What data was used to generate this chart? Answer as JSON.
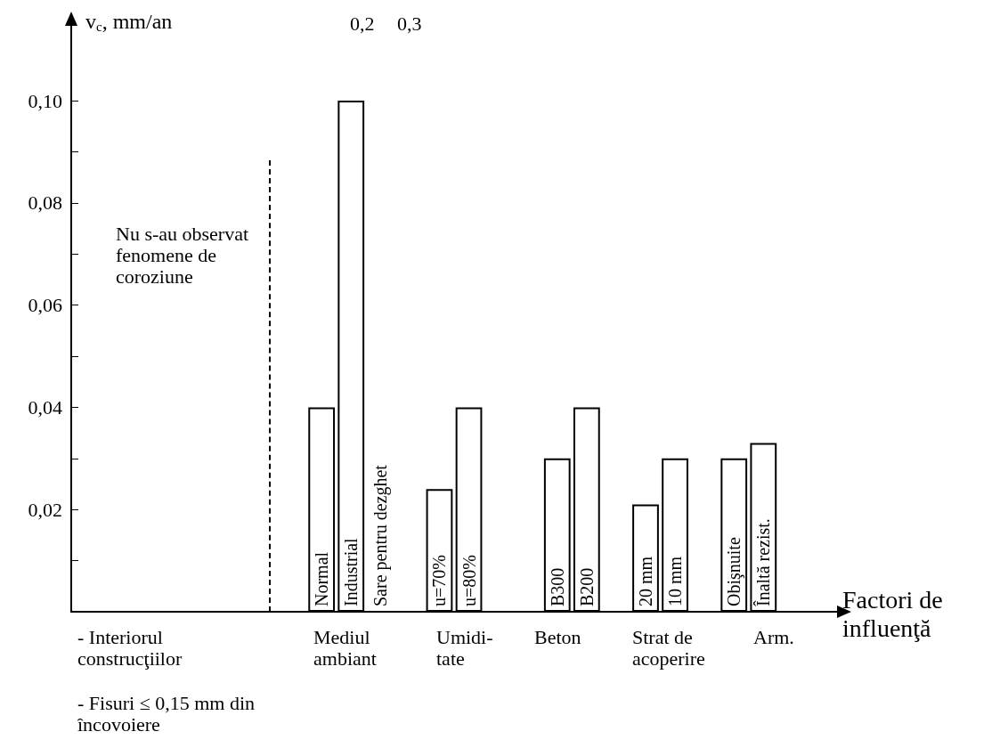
{
  "chart_data": {
    "type": "bar",
    "ylabel": "v$_{c}$, mm/an",
    "xlabel": "Factori de influenţă",
    "categories": [
      null,
      null,
      null,
      null,
      null,
      null,
      null,
      null,
      "Normal",
      "Industrial",
      "Sare pentru dezghet",
      null,
      "u=70%",
      "u=80%",
      null,
      null,
      "B300",
      "B200",
      null,
      "20 mm",
      "10 mm",
      null,
      "Obişnuite",
      "Înaltă rezist.",
      null,
      null
    ],
    "values": [
      null,
      null,
      null,
      null,
      null,
      null,
      null,
      null,
      0.04,
      0.1,
      null,
      null,
      0.024,
      0.04,
      null,
      null,
      0.03,
      0.04,
      null,
      0.021,
      0.03,
      null,
      0.03,
      0.033,
      null,
      null
    ],
    "color": "#ffffff",
    "ylim": [
      0,
      0.115
    ],
    "yticks": [
      {
        "value": 0.01,
        "label": null
      },
      {
        "value": 0.02,
        "label": "0,02"
      },
      {
        "value": 0.03,
        "label": null
      },
      {
        "value": 0.04,
        "label": "0,04"
      },
      {
        "value": 0.05,
        "label": null
      },
      {
        "value": 0.06,
        "label": "0,06"
      },
      {
        "value": 0.07,
        "label": null
      },
      {
        "value": 0.08,
        "label": "0,08"
      },
      {
        "value": 0.09,
        "label": null
      },
      {
        "value": 0.1,
        "label": "0,10"
      }
    ],
    "tick_labels": "y",
    "grid": false,
    "annotations": [
      "Nu s-au observat fenomene de coroziune",
      "- Interiorul construcţiilor",
      "Mediul ambiant",
      "Umidi- tate",
      "Beton",
      "Strat de acoperire",
      "Arm.",
      "- Fisuri ≤ 0,15 mm din încovoiere",
      "0,2",
      "0,3"
    ]
  }
}
